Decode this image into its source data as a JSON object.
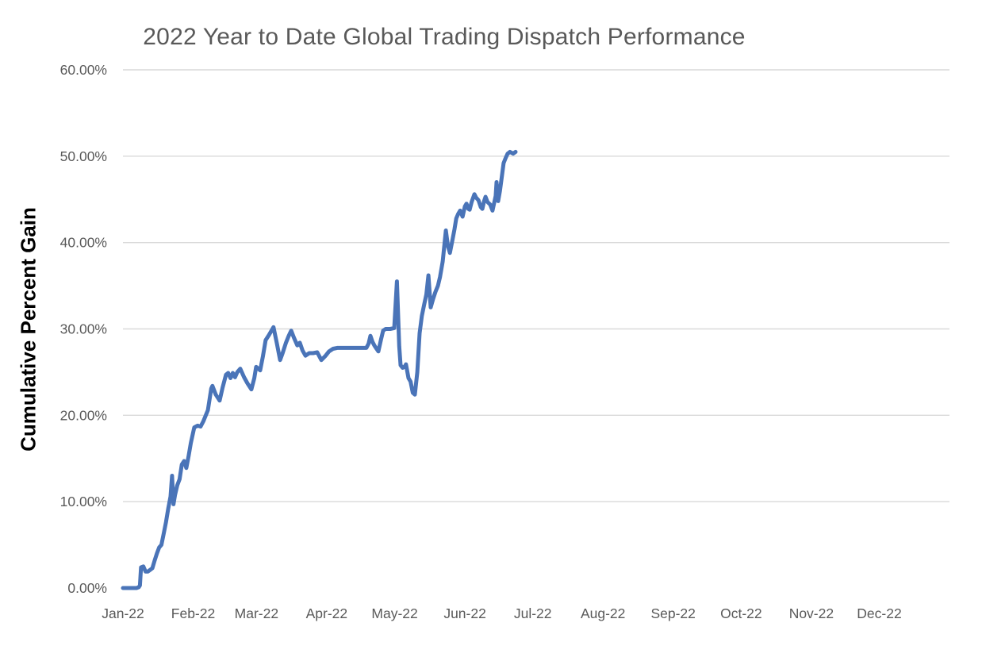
{
  "chart_data": {
    "type": "line",
    "title": "2022 Year to Date Global Trading Dispatch Performance",
    "xlabel": "",
    "ylabel": "Cumulative Percent Gain",
    "legend_position": "none",
    "grid": "horizontal-only",
    "y_axis": {
      "min": 0,
      "max": 60,
      "tick_format": "0.00%",
      "ticks": [
        {
          "value": 0,
          "label": "0.00%"
        },
        {
          "value": 10,
          "label": "10.00%"
        },
        {
          "value": 20,
          "label": "20.00%"
        },
        {
          "value": 30,
          "label": "30.00%"
        },
        {
          "value": 40,
          "label": "40.00%"
        },
        {
          "value": 50,
          "label": "50.00%"
        },
        {
          "value": 60,
          "label": "60.00%"
        }
      ]
    },
    "x_axis": {
      "unit": "month",
      "labels": [
        "Jan-22",
        "Feb-22",
        "Mar-22",
        "Apr-22",
        "May-22",
        "Jun-22",
        "Jul-22",
        "Aug-22",
        "Sep-22",
        "Oct-22",
        "Nov-22",
        "Dec-22"
      ]
    },
    "series": [
      {
        "name": "Cumulative Percent Gain",
        "x_unit": "day_of_year_2022",
        "y_unit": "percent",
        "points": [
          [
            0,
            0
          ],
          [
            3,
            0
          ],
          [
            6,
            0
          ],
          [
            7,
            0.1
          ],
          [
            7.5,
            0.3
          ],
          [
            8,
            2.4
          ],
          [
            9,
            2.5
          ],
          [
            10,
            1.9
          ],
          [
            11,
            1.9
          ],
          [
            12,
            2.1
          ],
          [
            13,
            2.3
          ],
          [
            14,
            3.2
          ],
          [
            15,
            4.0
          ],
          [
            16,
            4.7
          ],
          [
            17,
            5.0
          ],
          [
            18,
            6.3
          ],
          [
            19,
            7.6
          ],
          [
            20,
            9.2
          ],
          [
            21,
            10.6
          ],
          [
            21.7,
            13.0
          ],
          [
            22.3,
            9.7
          ],
          [
            23,
            10.8
          ],
          [
            24,
            11.9
          ],
          [
            25,
            12.6
          ],
          [
            26,
            14.3
          ],
          [
            27,
            14.7
          ],
          [
            28,
            13.9
          ],
          [
            29,
            15.3
          ],
          [
            30,
            16.8
          ],
          [
            31.5,
            18.6
          ],
          [
            33,
            18.8
          ],
          [
            34.3,
            18.7
          ],
          [
            35.5,
            19.3
          ],
          [
            37.5,
            20.6
          ],
          [
            39,
            23.1
          ],
          [
            39.5,
            23.4
          ],
          [
            41,
            22.4
          ],
          [
            42.7,
            21.7
          ],
          [
            44,
            23.2
          ],
          [
            45.5,
            24.7
          ],
          [
            46.5,
            24.9
          ],
          [
            47.5,
            24.3
          ],
          [
            48.5,
            24.9
          ],
          [
            49.5,
            24.4
          ],
          [
            50.5,
            25.0
          ],
          [
            51.8,
            25.4
          ],
          [
            53.5,
            24.4
          ],
          [
            55,
            23.7
          ],
          [
            56.7,
            23.0
          ],
          [
            58,
            24.3
          ],
          [
            58.8,
            25.6
          ],
          [
            59.8,
            25.4
          ],
          [
            60.6,
            25.2
          ],
          [
            61.8,
            26.8
          ],
          [
            63,
            28.7
          ],
          [
            64.5,
            29.3
          ],
          [
            66.5,
            30.2
          ],
          [
            68,
            28.3
          ],
          [
            69.4,
            26.4
          ],
          [
            70.5,
            27.2
          ],
          [
            72,
            28.4
          ],
          [
            73.2,
            29.2
          ],
          [
            74.3,
            29.8
          ],
          [
            75.5,
            29.0
          ],
          [
            77,
            28.1
          ],
          [
            78.1,
            28.4
          ],
          [
            79.3,
            27.5
          ],
          [
            80.6,
            26.9
          ],
          [
            82.3,
            27.2
          ],
          [
            84,
            27.2
          ],
          [
            85.8,
            27.3
          ],
          [
            87.6,
            26.4
          ],
          [
            89.5,
            26.9
          ],
          [
            91,
            27.4
          ],
          [
            92.8,
            27.7
          ],
          [
            94.6,
            27.8
          ],
          [
            98,
            27.8
          ],
          [
            102,
            27.8
          ],
          [
            105,
            27.8
          ],
          [
            107.5,
            27.8
          ],
          [
            108.5,
            28.3
          ],
          [
            109.3,
            29.2
          ],
          [
            110.2,
            28.5
          ],
          [
            111,
            28.1
          ],
          [
            112,
            27.7
          ],
          [
            112.8,
            27.4
          ],
          [
            114,
            28.8
          ],
          [
            114.9,
            29.8
          ],
          [
            116,
            30.0
          ],
          [
            118,
            30.0
          ],
          [
            119.8,
            30.1
          ],
          [
            121,
            35.5
          ],
          [
            122,
            28.0
          ],
          [
            122.6,
            25.8
          ],
          [
            123.5,
            25.5
          ],
          [
            124.3,
            25.6
          ],
          [
            125,
            25.9
          ],
          [
            126.1,
            24.3
          ],
          [
            127,
            23.9
          ],
          [
            128,
            22.6
          ],
          [
            128.9,
            22.4
          ],
          [
            130,
            25.0
          ],
          [
            131,
            29.5
          ],
          [
            132,
            31.5
          ],
          [
            133,
            32.8
          ],
          [
            134,
            34.0
          ],
          [
            134.9,
            36.2
          ],
          [
            135.9,
            32.5
          ],
          [
            137,
            33.5
          ],
          [
            138,
            34.3
          ],
          [
            139.1,
            35.0
          ],
          [
            140,
            36.0
          ],
          [
            141.2,
            37.8
          ],
          [
            142.6,
            41.4
          ],
          [
            143.5,
            39.6
          ],
          [
            144.4,
            38.8
          ],
          [
            145.5,
            40.3
          ],
          [
            146.4,
            41.5
          ],
          [
            147.2,
            42.8
          ],
          [
            148,
            43.3
          ],
          [
            148.9,
            43.7
          ],
          [
            150,
            43.0
          ],
          [
            151,
            44.2
          ],
          [
            151.7,
            44.5
          ],
          [
            152.5,
            43.9
          ],
          [
            153.1,
            43.8
          ],
          [
            154,
            44.7
          ],
          [
            155.2,
            45.6
          ],
          [
            156,
            45.2
          ],
          [
            157,
            44.9
          ],
          [
            158,
            44.1
          ],
          [
            158.7,
            43.9
          ],
          [
            159.5,
            44.8
          ],
          [
            160.1,
            45.3
          ],
          [
            161,
            44.7
          ],
          [
            162.2,
            44.4
          ],
          [
            163.2,
            43.7
          ],
          [
            164.6,
            45.4
          ],
          [
            165,
            47.0
          ],
          [
            165.7,
            44.8
          ],
          [
            166.5,
            46.0
          ],
          [
            167.3,
            47.6
          ],
          [
            168.1,
            49.2
          ],
          [
            169,
            49.8
          ],
          [
            169.9,
            50.3
          ],
          [
            170.9,
            50.5
          ],
          [
            172.3,
            50.3
          ],
          [
            173.4,
            50.5
          ]
        ]
      }
    ],
    "colors": {
      "line": "#4a74b8",
      "gridline": "#d9d9d9",
      "tick_label": "#595959",
      "title": "#595959",
      "axis_title": "#000000",
      "background": "#ffffff"
    }
  }
}
